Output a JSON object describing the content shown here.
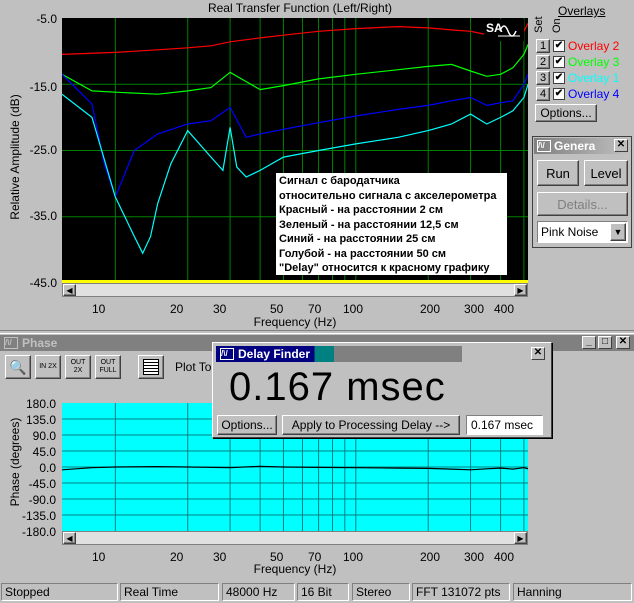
{
  "transfer": {
    "title": "Real Transfer Function (Left/Right)",
    "ylabel": "Relative Amplitude (dB)",
    "xlabel": "Frequency (Hz)",
    "y_ticks": [
      "-5.0",
      "-15.0",
      "-25.0",
      "-35.0",
      "-45.0"
    ],
    "x_ticks": [
      "10",
      "20",
      "30",
      "50",
      "70",
      "100",
      "200",
      "300",
      "400"
    ],
    "note_lines": [
      "Сигнал с бародатчика",
      "относительно сигнала с акселерометра",
      "Красный - на расстоянии 2 см",
      "Зеленый - на расстоянии 12,5 см",
      "Синий - на расстоянии 25 см",
      "Голубой - на расстоянии 50 см",
      "\"Delay\"  относится к красному графику"
    ],
    "logo": "SA"
  },
  "overlays": {
    "title": "Overlays",
    "set_label": "Set",
    "on_label": "On",
    "items": [
      {
        "num": "1",
        "label": "Overlay 2",
        "color": "#ff0000",
        "checked": "✔"
      },
      {
        "num": "2",
        "label": "Overlay 3",
        "color": "#00ff00",
        "checked": "✔"
      },
      {
        "num": "3",
        "label": "Overlay 1",
        "color": "#00ffff",
        "checked": "✔"
      },
      {
        "num": "4",
        "label": "Overlay 4",
        "color": "#0000ff",
        "checked": "✔"
      }
    ],
    "options_label": "Options..."
  },
  "generator": {
    "title": "Genera",
    "run_label": "Run",
    "level_label": "Level",
    "details_label": "Details...",
    "signal": "Pink Noise"
  },
  "phase": {
    "title": "Phase",
    "plot_label": "Plot To",
    "ylabel": "Phase (degrees)",
    "xlabel": "Frequency (Hz)",
    "y_ticks": [
      "180.0",
      "135.0",
      "90.0",
      "45.0",
      "0.0",
      "-45.0",
      "-90.0",
      "-135.0",
      "-180.0"
    ],
    "x_ticks": [
      "10",
      "20",
      "30",
      "50",
      "70",
      "100",
      "200",
      "300",
      "400"
    ],
    "tools": [
      {
        "name": "zoom",
        "text": "🔍"
      },
      {
        "name": "zoom-in",
        "text": "IN 2X"
      },
      {
        "name": "zoom-out",
        "text": "OUT 2X"
      },
      {
        "name": "zoom-full",
        "text": "OUT FULL"
      }
    ]
  },
  "delay_finder": {
    "title": "Delay Finder",
    "value": "0.167 msec",
    "options_label": "Options...",
    "apply_label": "Apply to Processing Delay -->",
    "field_value": "0.167 msec"
  },
  "status": {
    "items": [
      "Stopped",
      "Real Time",
      "48000 Hz",
      "16 Bit",
      "Stereo",
      "FFT 131072 pts",
      "Hanning"
    ]
  },
  "colors": {
    "plot_bg": "#000000",
    "grid": "#008000",
    "phase_bg": "#00ffff",
    "title_active": "#000080",
    "title_inactive": "#808080"
  },
  "chart_data": [
    {
      "type": "line",
      "title": "Real Transfer Function (Left/Right)",
      "xlabel": "Frequency (Hz)",
      "ylabel": "Relative Amplitude (dB)",
      "xscale": "log",
      "xlim": [
        6,
        520
      ],
      "ylim": [
        -45,
        -5
      ],
      "grid": true,
      "series": [
        {
          "name": "Overlay 2",
          "color": "#ff0000",
          "x": [
            6,
            10,
            15,
            20,
            25,
            30,
            40,
            50,
            70,
            100,
            150,
            200,
            250,
            300,
            350,
            400,
            450,
            500,
            520
          ],
          "y": [
            -10.5,
            -10.2,
            -9.8,
            -9.5,
            -9.2,
            -8.6,
            -8.0,
            -7.6,
            -7.0,
            -6.6,
            -6.3,
            -6.5,
            -6.8,
            -7.0,
            -7.5,
            -8.0,
            -7.4,
            -7.0,
            -5.8
          ]
        },
        {
          "name": "Overlay 3",
          "color": "#00ff00",
          "x": [
            6,
            8,
            10,
            15,
            20,
            25,
            30,
            40,
            50,
            70,
            100,
            150,
            200,
            250,
            300,
            350,
            400,
            450,
            500,
            520
          ],
          "y": [
            -13.5,
            -16.0,
            -16.2,
            -16.5,
            -16.0,
            -15.5,
            -13.2,
            -15.8,
            -15.2,
            -14.2,
            -13.5,
            -12.8,
            -12.3,
            -12.0,
            -13.0,
            -13.8,
            -13.5,
            -12.5,
            -10.5,
            -9.0
          ]
        },
        {
          "name": "Overlay 4",
          "color": "#0000ff",
          "x": [
            6,
            8,
            9,
            10,
            12,
            15,
            20,
            25,
            30,
            35,
            40,
            50,
            70,
            100,
            150,
            200,
            250,
            300,
            350,
            400,
            450,
            500,
            520
          ],
          "y": [
            -13.5,
            -18.0,
            -27.0,
            -32.0,
            -25.0,
            -22.5,
            -21.0,
            -20.5,
            -18.5,
            -23.0,
            -22.5,
            -21.8,
            -20.8,
            -19.8,
            -18.8,
            -18.2,
            -17.5,
            -17.0,
            -18.2,
            -17.8,
            -17.5,
            -15.0,
            -13.5
          ]
        },
        {
          "name": "Overlay 1",
          "color": "#00ffff",
          "x": [
            6,
            8,
            10,
            12,
            13,
            14,
            15,
            17,
            20,
            25,
            28,
            30,
            32,
            35,
            40,
            50,
            70,
            100,
            150,
            200,
            250,
            300,
            350,
            400,
            450,
            500,
            520
          ],
          "y": [
            -16.5,
            -20.0,
            -32.0,
            -38.0,
            -40.5,
            -38.0,
            -33.0,
            -27.0,
            -22.0,
            -26.0,
            -28.0,
            -21.5,
            -27.5,
            -29.0,
            -28.0,
            -26.0,
            -25.0,
            -24.0,
            -23.0,
            -22.0,
            -21.0,
            -19.5,
            -21.0,
            -20.0,
            -19.0,
            -17.0,
            -15.0
          ]
        }
      ]
    },
    {
      "type": "line",
      "title": "",
      "xlabel": "Frequency (Hz)",
      "ylabel": "Phase (degrees)",
      "xscale": "log",
      "xlim": [
        6,
        520
      ],
      "ylim": [
        -180,
        180
      ],
      "grid": true,
      "series": [
        {
          "color": "#000000",
          "x": [
            6,
            8,
            10,
            15,
            20,
            30,
            40,
            50,
            70,
            100,
            150,
            200,
            250,
            300,
            350,
            400,
            450,
            500,
            520
          ],
          "y": [
            -8,
            -2,
            0,
            1,
            0,
            -2,
            2,
            0,
            -1,
            -2,
            -3,
            -4,
            -6,
            -8,
            -5,
            -3,
            -6,
            -2,
            -5
          ]
        }
      ]
    }
  ]
}
